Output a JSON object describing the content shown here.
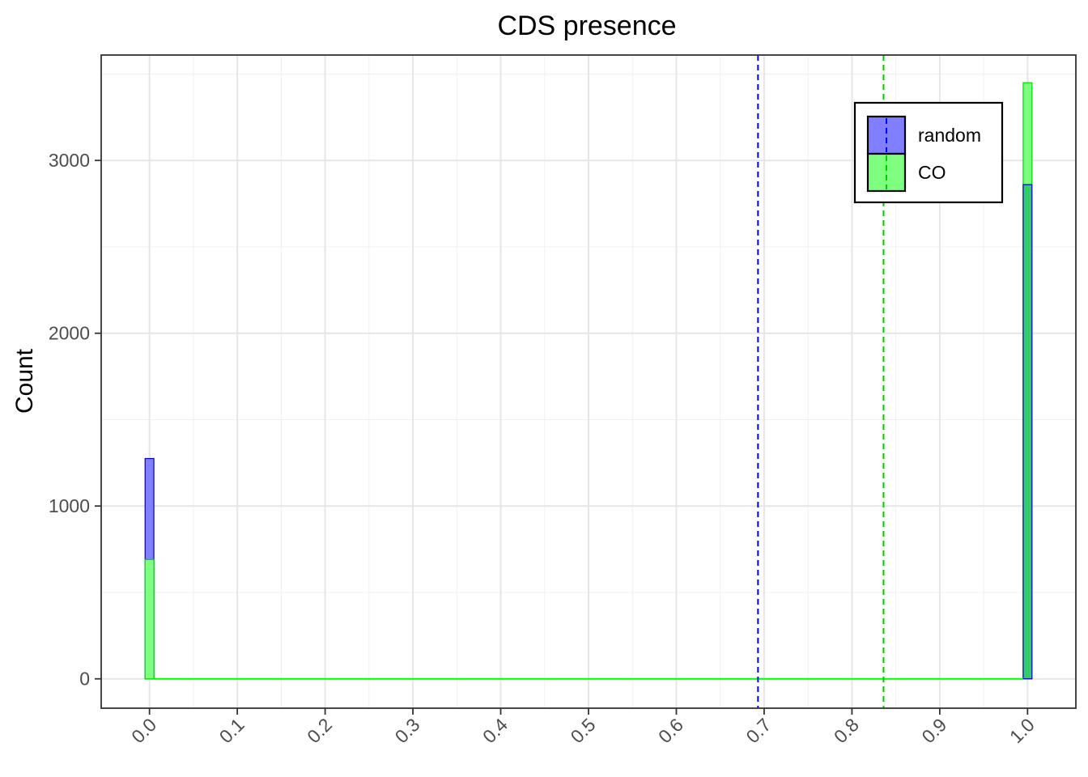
{
  "chart_data": {
    "type": "histogram",
    "title": "CDS presence",
    "xlabel": "",
    "ylabel": "Count",
    "xlim": [
      -0.055,
      1.055
    ],
    "ylim": [
      -170,
      3610
    ],
    "x_ticks": [
      0.0,
      0.1,
      0.2,
      0.3,
      0.4,
      0.5,
      0.6,
      0.7,
      0.8,
      0.9,
      1.0
    ],
    "x_tick_labels": [
      "0.0",
      "0.1",
      "0.2",
      "0.3",
      "0.4",
      "0.5",
      "0.6",
      "0.7",
      "0.8",
      "0.9",
      "1.0"
    ],
    "y_ticks": [
      0,
      1000,
      2000,
      3000
    ],
    "y_tick_labels": [
      "0",
      "1000",
      "2000",
      "3000"
    ],
    "bin_width": 0.01,
    "grid": true,
    "legend_position": "top-right",
    "series": [
      {
        "name": "random",
        "fill": "#7f7fff",
        "stroke": "#0000cc",
        "mean_line_color": "#0000ff",
        "mean": 0.693,
        "bins": [
          {
            "x": 0.0,
            "count": 1275
          },
          {
            "x": 1.0,
            "count": 2860
          }
        ]
      },
      {
        "name": "CO",
        "fill": "#7fff7f",
        "stroke": "#00dd00",
        "mean_line_color": "#00cc00",
        "mean": 0.836,
        "bins": [
          {
            "x": 0.0,
            "count": 690
          },
          {
            "x": 1.0,
            "count": 3450
          }
        ]
      }
    ],
    "overlap_color": "#33cc66",
    "baseline_color": "#00ff00"
  }
}
